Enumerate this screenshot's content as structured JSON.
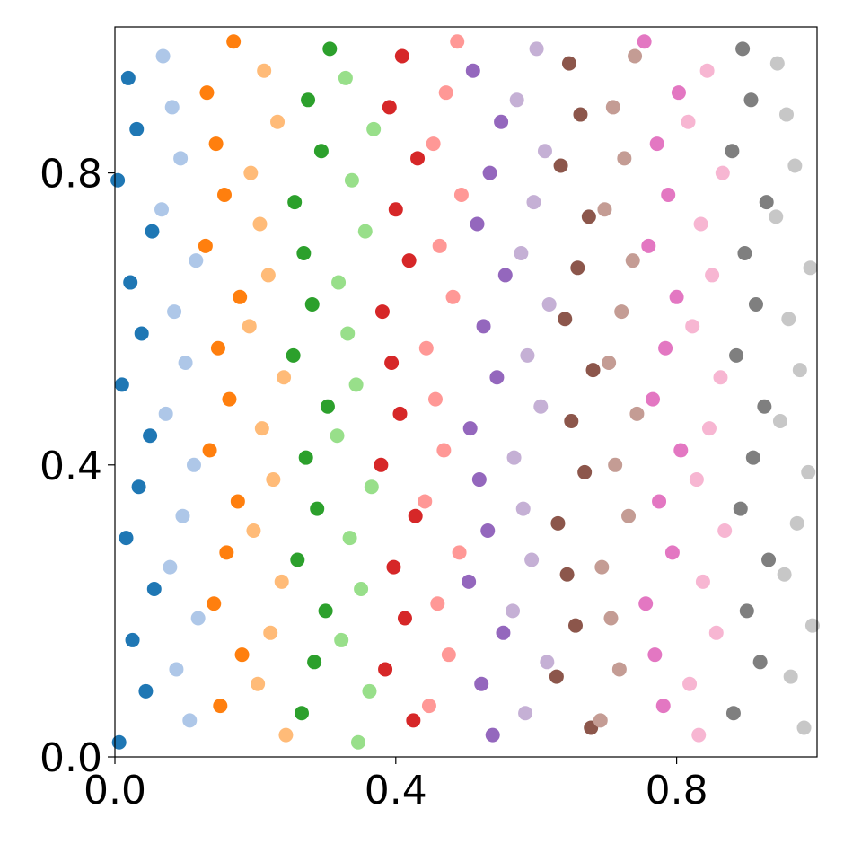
{
  "chart_data": {
    "type": "scatter",
    "xlim": [
      0,
      1
    ],
    "ylim": [
      0,
      1
    ],
    "xticks": [
      {
        "value": 0,
        "label": "0.0"
      },
      {
        "value": 0.4,
        "label": "0.4"
      },
      {
        "value": 0.8,
        "label": "0.8"
      }
    ],
    "yticks": [
      {
        "value": 0,
        "label": "0.0"
      },
      {
        "value": 0.4,
        "label": "0.4"
      },
      {
        "value": 0.8,
        "label": "0.8"
      }
    ],
    "series": [
      {
        "color": "#1f77b4",
        "x": [
          0.006,
          0.044,
          0.025,
          0.056,
          0.016,
          0.034,
          0.05,
          0.01,
          0.038,
          0.022,
          0.053,
          0.004,
          0.031,
          0.019
        ],
        "y": [
          0.02,
          0.09,
          0.16,
          0.23,
          0.3,
          0.37,
          0.44,
          0.51,
          0.58,
          0.65,
          0.72,
          0.79,
          0.86,
          0.93
        ]
      },
      {
        "color": "#aec7e8",
        "x": [
          0.1065,
          0.0875,
          0.1185,
          0.0785,
          0.0965,
          0.1125,
          0.0725,
          0.1005,
          0.0845,
          0.1155,
          0.0665,
          0.0935,
          0.0815,
          0.0685
        ],
        "y": [
          0.05,
          0.12,
          0.19,
          0.26,
          0.33,
          0.4,
          0.47,
          0.54,
          0.61,
          0.68,
          0.75,
          0.82,
          0.89,
          0.96
        ]
      },
      {
        "color": "#ff7f0e",
        "x": [
          0.15,
          0.181,
          0.141,
          0.159,
          0.175,
          0.135,
          0.163,
          0.147,
          0.178,
          0.129,
          0.156,
          0.144,
          0.131,
          0.169
        ],
        "y": [
          0.07,
          0.14,
          0.21,
          0.28,
          0.35,
          0.42,
          0.49,
          0.56,
          0.63,
          0.7,
          0.77,
          0.84,
          0.91,
          0.98
        ]
      },
      {
        "color": "#ffbb78",
        "x": [
          0.2435,
          0.2035,
          0.2215,
          0.2375,
          0.1975,
          0.2255,
          0.2095,
          0.2405,
          0.1915,
          0.2185,
          0.2065,
          0.1935,
          0.2315,
          0.2125
        ],
        "y": [
          0.03,
          0.1,
          0.17,
          0.24,
          0.31,
          0.38,
          0.45,
          0.52,
          0.59,
          0.66,
          0.73,
          0.8,
          0.87,
          0.94
        ]
      },
      {
        "color": "#2ca02c",
        "x": [
          0.266,
          0.284,
          0.3,
          0.26,
          0.288,
          0.272,
          0.303,
          0.254,
          0.281,
          0.269,
          0.256,
          0.294,
          0.275,
          0.306
        ],
        "y": [
          0.06,
          0.13,
          0.2,
          0.27,
          0.34,
          0.41,
          0.48,
          0.55,
          0.62,
          0.69,
          0.76,
          0.83,
          0.9,
          0.97
        ]
      },
      {
        "color": "#98df8a",
        "x": [
          0.3465,
          0.3625,
          0.3225,
          0.3505,
          0.3345,
          0.3655,
          0.3165,
          0.3435,
          0.3315,
          0.3185,
          0.3565,
          0.3375,
          0.3685,
          0.3285
        ],
        "y": [
          0.02,
          0.09,
          0.16,
          0.23,
          0.3,
          0.37,
          0.44,
          0.51,
          0.58,
          0.65,
          0.72,
          0.79,
          0.86,
          0.93
        ]
      },
      {
        "color": "#d62728",
        "x": [
          0.425,
          0.385,
          0.413,
          0.397,
          0.428,
          0.379,
          0.406,
          0.394,
          0.381,
          0.419,
          0.4,
          0.431,
          0.391,
          0.409
        ],
        "y": [
          0.05,
          0.12,
          0.19,
          0.26,
          0.33,
          0.4,
          0.47,
          0.54,
          0.61,
          0.68,
          0.75,
          0.82,
          0.89,
          0.96
        ]
      },
      {
        "color": "#ff9896",
        "x": [
          0.4475,
          0.4755,
          0.4595,
          0.4905,
          0.4415,
          0.4685,
          0.4565,
          0.4435,
          0.4815,
          0.4625,
          0.4935,
          0.4535,
          0.4715,
          0.4875
        ],
        "y": [
          0.07,
          0.14,
          0.21,
          0.28,
          0.35,
          0.42,
          0.49,
          0.56,
          0.63,
          0.7,
          0.77,
          0.84,
          0.91,
          0.98
        ]
      },
      {
        "color": "#9467bd",
        "x": [
          0.538,
          0.522,
          0.553,
          0.504,
          0.531,
          0.519,
          0.506,
          0.544,
          0.525,
          0.556,
          0.516,
          0.534,
          0.55,
          0.51
        ],
        "y": [
          0.03,
          0.1,
          0.17,
          0.24,
          0.31,
          0.38,
          0.45,
          0.52,
          0.59,
          0.66,
          0.73,
          0.8,
          0.87,
          0.94
        ]
      },
      {
        "color": "#c5b0d5",
        "x": [
          0.5845,
          0.6155,
          0.5665,
          0.5935,
          0.5815,
          0.5685,
          0.6065,
          0.5875,
          0.6185,
          0.5785,
          0.5965,
          0.6125,
          0.5725,
          0.6005
        ],
        "y": [
          0.06,
          0.13,
          0.2,
          0.27,
          0.34,
          0.41,
          0.48,
          0.55,
          0.62,
          0.69,
          0.76,
          0.83,
          0.9,
          0.97
        ]
      },
      {
        "color": "#8c564b",
        "x": [
          0.678,
          0.629,
          0.656,
          0.644,
          0.631,
          0.669,
          0.65,
          0.681,
          0.641,
          0.659,
          0.675,
          0.635,
          0.663,
          0.647
        ],
        "y": [
          0.04,
          0.11,
          0.18,
          0.25,
          0.32,
          0.39,
          0.46,
          0.53,
          0.6,
          0.67,
          0.74,
          0.81,
          0.88,
          0.95
        ]
      },
      {
        "color": "#c49c94",
        "x": [
          0.6915,
          0.7185,
          0.7065,
          0.6935,
          0.7315,
          0.7125,
          0.7435,
          0.7035,
          0.7215,
          0.7375,
          0.6975,
          0.7255,
          0.7095,
          0.7405
        ],
        "y": [
          0.05,
          0.12,
          0.19,
          0.26,
          0.33,
          0.4,
          0.47,
          0.54,
          0.61,
          0.68,
          0.75,
          0.82,
          0.89,
          0.96
        ]
      },
      {
        "color": "#e377c2",
        "x": [
          0.781,
          0.769,
          0.756,
          0.794,
          0.775,
          0.806,
          0.766,
          0.784,
          0.8,
          0.76,
          0.788,
          0.772,
          0.803,
          0.754
        ],
        "y": [
          0.07,
          0.14,
          0.21,
          0.28,
          0.35,
          0.42,
          0.49,
          0.56,
          0.63,
          0.7,
          0.77,
          0.84,
          0.91,
          0.98
        ]
      },
      {
        "color": "#f7b6d2",
        "x": [
          0.8315,
          0.8185,
          0.8565,
          0.8375,
          0.8685,
          0.8285,
          0.8465,
          0.8625,
          0.8225,
          0.8505,
          0.8345,
          0.8655,
          0.8165,
          0.8435
        ],
        "y": [
          0.03,
          0.1,
          0.17,
          0.24,
          0.31,
          0.38,
          0.45,
          0.52,
          0.59,
          0.66,
          0.73,
          0.8,
          0.87,
          0.94
        ]
      },
      {
        "color": "#7f7f7f",
        "x": [
          0.881,
          0.919,
          0.9,
          0.931,
          0.891,
          0.909,
          0.925,
          0.885,
          0.913,
          0.897,
          0.928,
          0.879,
          0.906,
          0.894
        ],
        "y": [
          0.06,
          0.13,
          0.2,
          0.27,
          0.34,
          0.41,
          0.48,
          0.55,
          0.62,
          0.69,
          0.76,
          0.83,
          0.9,
          0.97
        ]
      },
      {
        "color": "#c7c7c7",
        "x": [
          0.9815,
          0.9625,
          0.9935,
          0.9535,
          0.9715,
          0.9875,
          0.9475,
          0.9755,
          0.9595,
          0.9905,
          0.9415,
          0.9685,
          0.9565,
          0.9435
        ],
        "y": [
          0.04,
          0.11,
          0.18,
          0.25,
          0.32,
          0.39,
          0.46,
          0.53,
          0.6,
          0.67,
          0.74,
          0.81,
          0.88,
          0.95
        ]
      }
    ]
  }
}
